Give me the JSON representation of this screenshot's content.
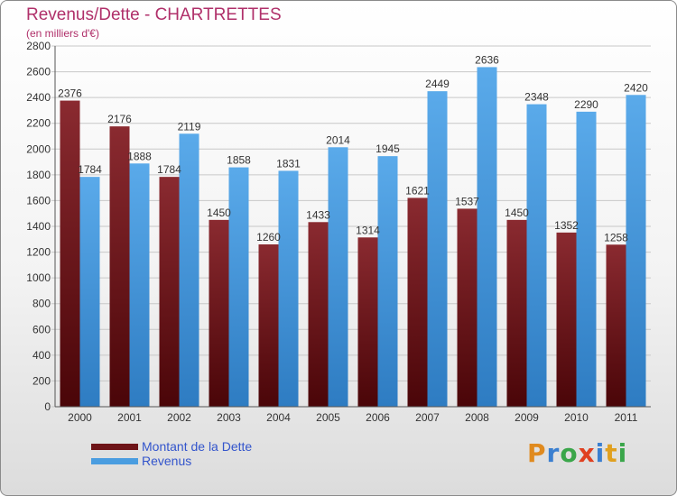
{
  "header": {
    "title": "Revenus/Dette - CHARTRETTES",
    "subtitle": "(en milliers d'€)"
  },
  "chart_data": {
    "type": "bar",
    "categories": [
      "2000",
      "2001",
      "2002",
      "2003",
      "2004",
      "2005",
      "2006",
      "2007",
      "2008",
      "2009",
      "2010",
      "2011"
    ],
    "series": [
      {
        "name": "Montant de la Dette",
        "color": "#6e1418",
        "values": [
          2376,
          2176,
          1784,
          1450,
          1260,
          1433,
          1314,
          1621,
          1537,
          1450,
          1352,
          1258
        ]
      },
      {
        "name": "Revenus",
        "color": "#4a9de0",
        "values": [
          1784,
          1888,
          2119,
          1858,
          1831,
          2014,
          1945,
          2449,
          2636,
          2348,
          2290,
          2420
        ]
      }
    ],
    "ylim": [
      0,
      2800
    ],
    "yticks": [
      0,
      200,
      400,
      600,
      800,
      1000,
      1200,
      1400,
      1600,
      1800,
      2000,
      2200,
      2400,
      2600,
      2800
    ],
    "grid": true,
    "legend_position": "bottom-left"
  },
  "branding": {
    "logo_letters": [
      "P",
      "r",
      "o",
      "x",
      "i",
      "t",
      "i"
    ],
    "logo_colors": [
      "#e08a1e",
      "#3a7fd0",
      "#3aa64a",
      "#e04020",
      "#3a7fd0",
      "#e0a020",
      "#3aa64a"
    ]
  }
}
